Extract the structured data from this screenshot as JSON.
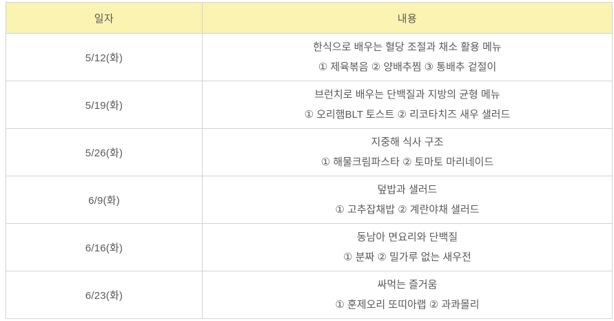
{
  "colors": {
    "header_bg": "#faf3b2",
    "border": "#d2d2d2",
    "text": "#595959",
    "page_bg": "#ffffff"
  },
  "table": {
    "headers": [
      {
        "label": "일자"
      },
      {
        "label": "내용"
      }
    ],
    "rows": [
      {
        "date": "5/12(화)",
        "title": "한식으로 배우는 혈당 조절과 채소 활용 메뉴",
        "menu": "① 제육볶음 ② 양배추찜 ③ 통배추 겉절이"
      },
      {
        "date": "5/19(화)",
        "title": "브런치로 배우는 단백질과 지방의 균형 메뉴",
        "menu": "① 오리햄BLT 토스트 ② 리코타치즈 새우 샐러드"
      },
      {
        "date": "5/26(화)",
        "title": "지중해 식사 구조",
        "menu": "① 해물크림파스타 ② 토마토 마리네이드"
      },
      {
        "date": "6/9(화)",
        "title": "덮밥과 샐러드",
        "menu": "① 고추잡채밥 ② 계란야채 샐러드"
      },
      {
        "date": "6/16(화)",
        "title": "동남아 면요리와 단백질",
        "menu": "① 분짜 ② 밀가루 없는 새우전"
      },
      {
        "date": "6/23(화)",
        "title": "싸먹는 즐거움",
        "menu": "① 훈제오리 또띠아랩 ② 과콰몰리"
      }
    ]
  }
}
